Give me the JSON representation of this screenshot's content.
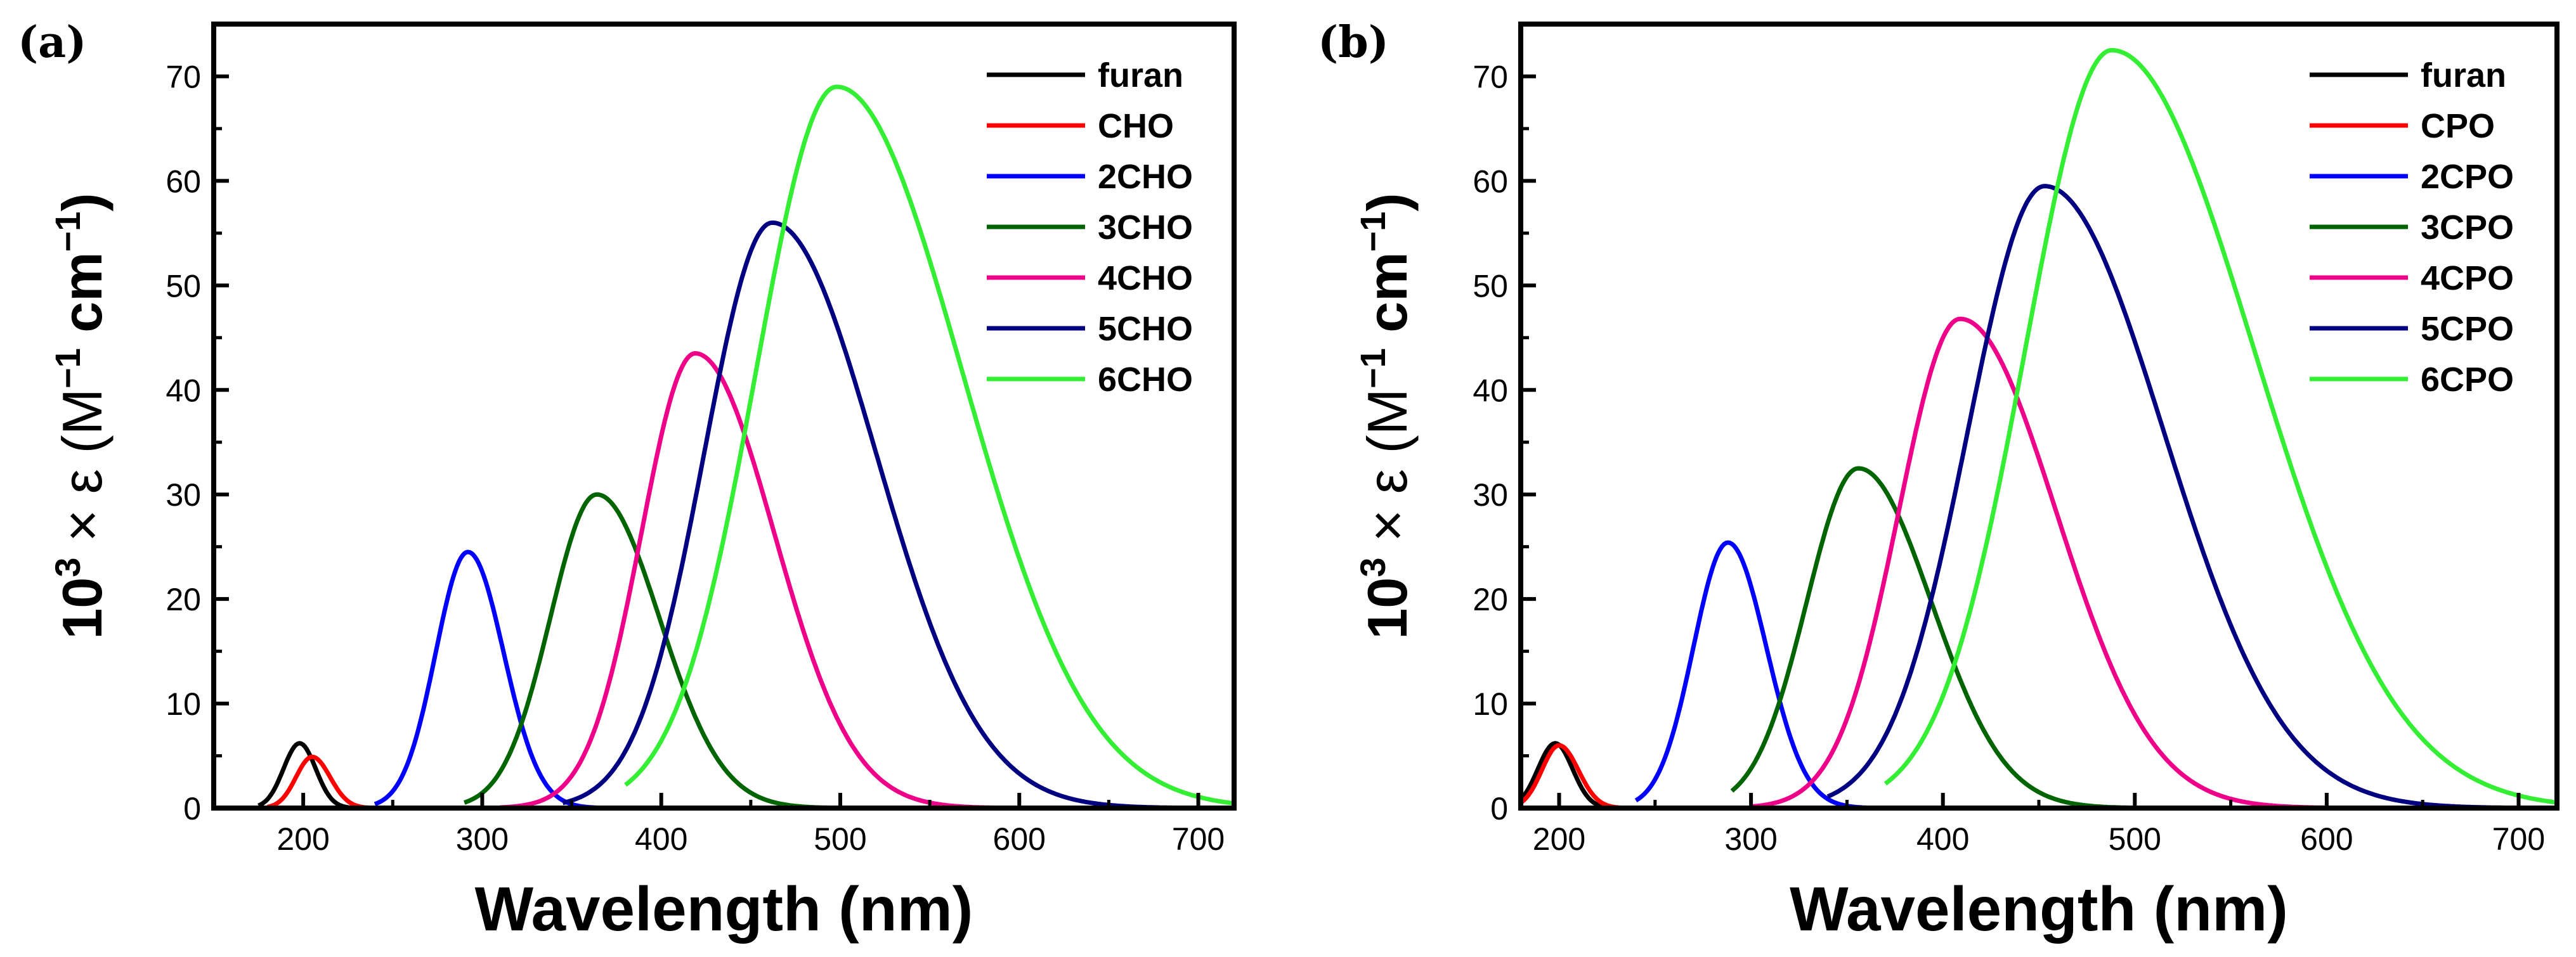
{
  "chart_data": [
    {
      "type": "line",
      "panel_label": "(a)",
      "xlabel": "Wavelength (nm)",
      "ylabel": {
        "base": "10",
        "sup": "3",
        "mid": " × ε (M",
        "sup2": "−1",
        "mid2": " cm",
        "sup3": "−1",
        "end": ")"
      },
      "xlim": [
        150,
        720
      ],
      "ylim": [
        0,
        75
      ],
      "xticks": [
        "200",
        "300",
        "400",
        "500",
        "600",
        "700"
      ],
      "yticks": [
        "0",
        "10",
        "20",
        "30",
        "40",
        "50",
        "60",
        "70"
      ],
      "legend_position": "top-right",
      "series": [
        {
          "name": "furan",
          "color": "#000000",
          "peak_x": 198,
          "peak_y": 6.2,
          "sigma_left": 9,
          "sigma_right": 9,
          "x_start": 175,
          "x_end": 230
        },
        {
          "name": "CHO",
          "color": "#ff0000",
          "peak_x": 205,
          "peak_y": 4.9,
          "sigma_left": 9,
          "sigma_right": 10,
          "x_start": 180,
          "x_end": 240
        },
        {
          "name": "2CHO",
          "color": "#0000ff",
          "peak_x": 292,
          "peak_y": 24.5,
          "sigma_left": 18,
          "sigma_right": 20,
          "x_start": 240,
          "x_end": 365
        },
        {
          "name": "3CHO",
          "color": "#006400",
          "peak_x": 364,
          "peak_y": 30.0,
          "sigma_left": 26,
          "sigma_right": 35,
          "x_start": 290,
          "x_end": 510
        },
        {
          "name": "4CHO",
          "color": "#ee0088",
          "peak_x": 419,
          "peak_y": 43.5,
          "sigma_left": 30,
          "sigma_right": 44,
          "x_start": 310,
          "x_end": 610
        },
        {
          "name": "5CHO",
          "color": "#000080",
          "peak_x": 462,
          "peak_y": 56.0,
          "sigma_left": 38,
          "sigma_right": 58,
          "x_start": 345,
          "x_end": 720
        },
        {
          "name": "6CHO",
          "color": "#33ee33",
          "peak_x": 498,
          "peak_y": 69.0,
          "sigma_left": 45,
          "sigma_right": 70,
          "x_start": 380,
          "x_end": 720
        }
      ]
    },
    {
      "type": "line",
      "panel_label": "(b)",
      "xlabel": "Wavelength (nm)",
      "ylabel": {
        "base": "10",
        "sup": "3",
        "mid": " × ε (M",
        "sup2": "−1",
        "mid2": " cm",
        "sup3": "−1",
        "end": ")"
      },
      "xlim": [
        180,
        720
      ],
      "ylim": [
        0,
        75
      ],
      "xticks": [
        "200",
        "300",
        "400",
        "500",
        "600",
        "700"
      ],
      "yticks": [
        "0",
        "10",
        "20",
        "30",
        "40",
        "50",
        "60",
        "70"
      ],
      "legend_position": "top-right",
      "series": [
        {
          "name": "furan",
          "color": "#000000",
          "peak_x": 198,
          "peak_y": 6.2,
          "sigma_left": 9,
          "sigma_right": 9,
          "x_start": 180,
          "x_end": 232
        },
        {
          "name": "CPO",
          "color": "#ff0000",
          "peak_x": 200,
          "peak_y": 6.0,
          "sigma_left": 9,
          "sigma_right": 10,
          "x_start": 180,
          "x_end": 240
        },
        {
          "name": "2CPO",
          "color": "#0000ff",
          "peak_x": 288,
          "peak_y": 25.4,
          "sigma_left": 18,
          "sigma_right": 20,
          "x_start": 240,
          "x_end": 360
        },
        {
          "name": "3CPO",
          "color": "#006400",
          "peak_x": 356,
          "peak_y": 32.5,
          "sigma_left": 27,
          "sigma_right": 38,
          "x_start": 290,
          "x_end": 500
        },
        {
          "name": "4CPO",
          "color": "#ee0088",
          "peak_x": 409,
          "peak_y": 46.8,
          "sigma_left": 32,
          "sigma_right": 50,
          "x_start": 300,
          "x_end": 610
        },
        {
          "name": "5CPO",
          "color": "#000080",
          "peak_x": 453,
          "peak_y": 59.5,
          "sigma_left": 40,
          "sigma_right": 62,
          "x_start": 340,
          "x_end": 720
        },
        {
          "name": "6CPO",
          "color": "#33ee33",
          "peak_x": 488,
          "peak_y": 72.5,
          "sigma_left": 45,
          "sigma_right": 74,
          "x_start": 370,
          "x_end": 720
        }
      ]
    }
  ]
}
